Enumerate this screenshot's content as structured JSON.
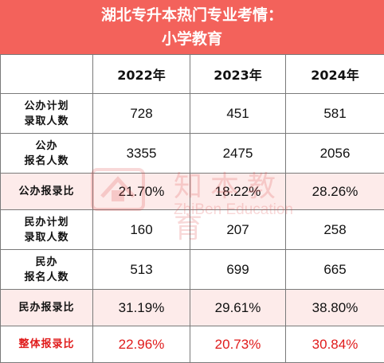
{
  "title": {
    "line1": "湖北专升本热门专业考情：",
    "line2": "小学教育"
  },
  "table": {
    "columns": [
      "2022年",
      "2023年",
      "2024年"
    ],
    "rows": [
      {
        "label_line1": "公办计划",
        "label_line2": "录取人数",
        "values": [
          "728",
          "451",
          "581"
        ]
      },
      {
        "label_line1": "公办",
        "label_line2": "报名人数",
        "values": [
          "3355",
          "2475",
          "2056"
        ]
      },
      {
        "label_line1": "公办报录比",
        "label_line2": "",
        "values": [
          "21.70%",
          "18.22%",
          "28.26%"
        ]
      },
      {
        "label_line1": "民办计划",
        "label_line2": "录取人数",
        "values": [
          "160",
          "207",
          "258"
        ]
      },
      {
        "label_line1": "民办",
        "label_line2": "报名人数",
        "values": [
          "513",
          "699",
          "665"
        ]
      },
      {
        "label_line1": "民办报录比",
        "label_line2": "",
        "values": [
          "31.19%",
          "29.61%",
          "38.80%"
        ]
      },
      {
        "label_line1": "整体报录比",
        "label_line2": "",
        "values": [
          "22.96%",
          "20.73%",
          "30.84%"
        ]
      }
    ]
  },
  "watermark": {
    "text_cn": "知本教育",
    "text_en": "ZhiBen Education"
  },
  "colors": {
    "header_bg": "#f3625b",
    "highlight_row": "#fdebea",
    "red_text": "#e01b1b"
  }
}
